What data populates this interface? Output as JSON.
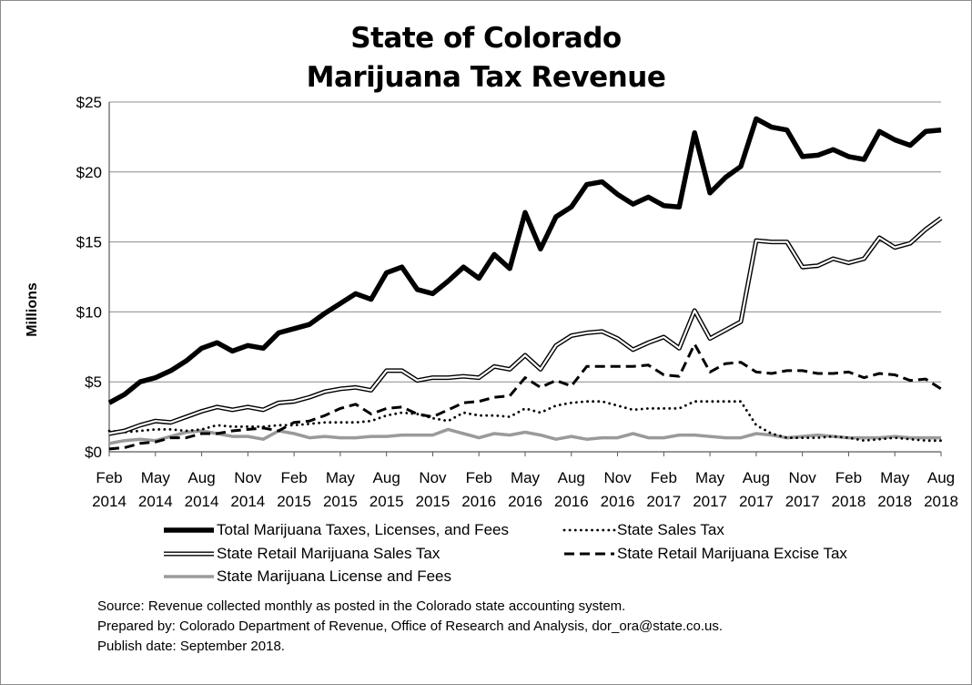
{
  "chart_data": {
    "type": "line",
    "title": [
      "State of Colorado",
      "Marijuana Tax Revenue"
    ],
    "ylabel": "Millions",
    "xlabel": "",
    "ylim": [
      0,
      25
    ],
    "yticks": [
      0,
      5,
      10,
      15,
      20,
      25
    ],
    "ytick_labels": [
      "$0",
      "$5",
      "$10",
      "$15",
      "$20",
      "$25"
    ],
    "grid": true,
    "x_tick_labels": [
      {
        "index": 0,
        "month": "Feb",
        "year": "2014"
      },
      {
        "index": 3,
        "month": "May",
        "year": "2014"
      },
      {
        "index": 6,
        "month": "Aug",
        "year": "2014"
      },
      {
        "index": 9,
        "month": "Nov",
        "year": "2014"
      },
      {
        "index": 12,
        "month": "Feb",
        "year": "2015"
      },
      {
        "index": 15,
        "month": "May",
        "year": "2015"
      },
      {
        "index": 18,
        "month": "Aug",
        "year": "2015"
      },
      {
        "index": 21,
        "month": "Nov",
        "year": "2015"
      },
      {
        "index": 24,
        "month": "Feb",
        "year": "2016"
      },
      {
        "index": 27,
        "month": "May",
        "year": "2016"
      },
      {
        "index": 30,
        "month": "Aug",
        "year": "2016"
      },
      {
        "index": 33,
        "month": "Nov",
        "year": "2016"
      },
      {
        "index": 36,
        "month": "Feb",
        "year": "2017"
      },
      {
        "index": 39,
        "month": "May",
        "year": "2017"
      },
      {
        "index": 42,
        "month": "Aug",
        "year": "2017"
      },
      {
        "index": 45,
        "month": "Nov",
        "year": "2017"
      },
      {
        "index": 48,
        "month": "Feb",
        "year": "2018"
      },
      {
        "index": 51,
        "month": "May",
        "year": "2018"
      },
      {
        "index": 54,
        "month": "Aug",
        "year": "2018"
      }
    ],
    "series": [
      {
        "name": "Total Marijuana Taxes, Licenses, and Fees",
        "style": "thick",
        "values": [
          3.5,
          4.1,
          5.0,
          5.3,
          5.8,
          6.5,
          7.4,
          7.8,
          7.2,
          7.6,
          7.4,
          8.5,
          8.8,
          9.1,
          9.9,
          10.6,
          11.3,
          10.9,
          12.8,
          13.2,
          11.6,
          11.3,
          12.2,
          13.2,
          12.4,
          14.1,
          13.1,
          17.1,
          14.5,
          16.8,
          17.5,
          19.1,
          19.3,
          18.4,
          17.7,
          18.2,
          17.6,
          17.5,
          22.8,
          18.5,
          19.6,
          20.4,
          23.8,
          23.2,
          23.0,
          21.1,
          21.2,
          21.6,
          21.1,
          20.9,
          22.9,
          22.3,
          21.9,
          22.9,
          23.0
        ]
      },
      {
        "name": "State Sales Tax",
        "style": "dotted",
        "values": [
          1.5,
          1.4,
          1.5,
          1.6,
          1.6,
          1.5,
          1.6,
          1.9,
          1.8,
          1.8,
          1.8,
          1.9,
          1.9,
          2.0,
          2.1,
          2.1,
          2.1,
          2.2,
          2.6,
          2.8,
          2.7,
          2.4,
          2.2,
          2.8,
          2.6,
          2.6,
          2.5,
          3.1,
          2.8,
          3.3,
          3.5,
          3.6,
          3.6,
          3.3,
          3.0,
          3.1,
          3.1,
          3.1,
          3.6,
          3.6,
          3.6,
          3.6,
          1.9,
          1.3,
          1.0,
          1.0,
          1.0,
          1.1,
          1.0,
          0.8,
          0.9,
          1.0,
          0.9,
          0.8,
          0.8
        ]
      },
      {
        "name": "State Retail Marijuana Sales Tax",
        "style": "double",
        "values": [
          1.3,
          1.5,
          1.9,
          2.2,
          2.1,
          2.5,
          2.9,
          3.2,
          3.0,
          3.2,
          3.0,
          3.5,
          3.6,
          3.9,
          4.3,
          4.5,
          4.6,
          4.4,
          5.8,
          5.8,
          5.1,
          5.3,
          5.3,
          5.4,
          5.3,
          6.1,
          5.9,
          6.9,
          5.9,
          7.6,
          8.3,
          8.5,
          8.6,
          8.1,
          7.3,
          7.8,
          8.2,
          7.4,
          10.1,
          8.1,
          8.7,
          9.3,
          15.1,
          15.0,
          15.0,
          13.2,
          13.3,
          13.8,
          13.5,
          13.8,
          15.3,
          14.6,
          14.9,
          15.9,
          16.7
        ]
      },
      {
        "name": "State Retail Marijuana Excise Tax",
        "style": "dashed",
        "values": [
          0.2,
          0.3,
          0.6,
          0.7,
          1.0,
          1.0,
          1.3,
          1.3,
          1.5,
          1.6,
          1.7,
          1.5,
          2.1,
          2.2,
          2.6,
          3.1,
          3.4,
          2.7,
          3.1,
          3.2,
          2.7,
          2.5,
          3.0,
          3.5,
          3.6,
          3.9,
          4.0,
          5.3,
          4.6,
          5.1,
          4.7,
          6.1,
          6.1,
          6.1,
          6.1,
          6.2,
          5.5,
          5.4,
          7.7,
          5.7,
          6.3,
          6.4,
          5.7,
          5.6,
          5.8,
          5.8,
          5.6,
          5.6,
          5.7,
          5.3,
          5.6,
          5.5,
          5.1,
          5.2,
          4.5
        ]
      },
      {
        "name": "State Marijuana License and Fees",
        "style": "gray",
        "values": [
          0.6,
          0.8,
          0.9,
          0.8,
          1.1,
          1.4,
          1.5,
          1.3,
          1.1,
          1.1,
          0.9,
          1.5,
          1.3,
          1.0,
          1.1,
          1.0,
          1.0,
          1.1,
          1.1,
          1.2,
          1.2,
          1.2,
          1.6,
          1.3,
          1.0,
          1.3,
          1.2,
          1.4,
          1.2,
          0.9,
          1.1,
          0.9,
          1.0,
          1.0,
          1.3,
          1.0,
          1.0,
          1.2,
          1.2,
          1.1,
          1.0,
          1.0,
          1.3,
          1.2,
          1.0,
          1.1,
          1.2,
          1.1,
          1.0,
          1.0,
          1.0,
          1.1,
          1.0,
          1.0,
          1.0
        ]
      }
    ]
  },
  "notes": [
    "Source: Revenue collected monthly as posted in the Colorado state accounting system.",
    "Prepared by: Colorado Department of Revenue, Office of Research and Analysis, dor_ora@state.co.us.",
    "Publish date: September 2018."
  ]
}
